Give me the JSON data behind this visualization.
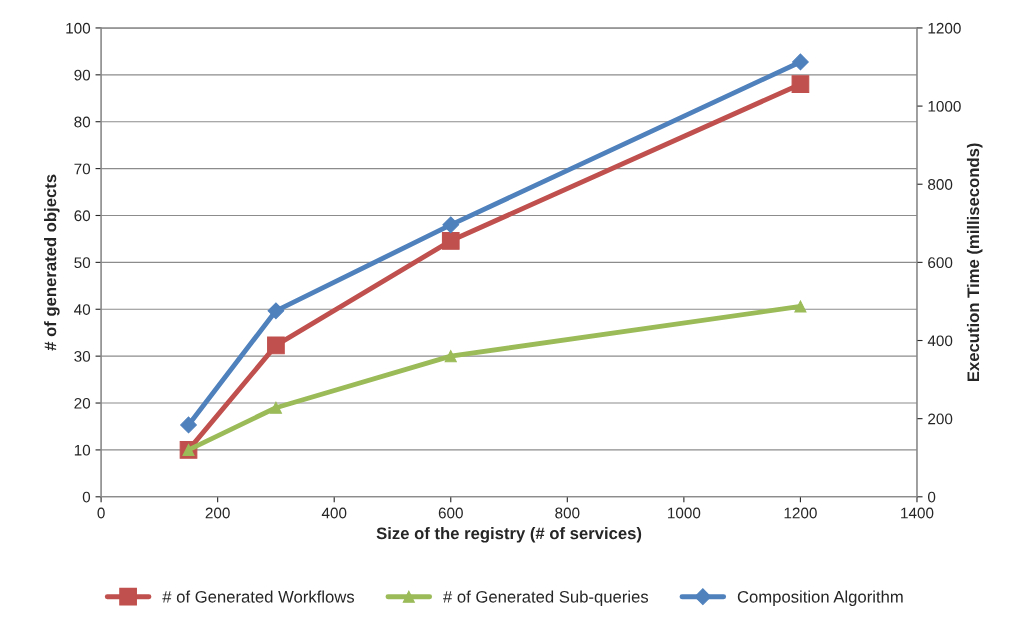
{
  "chart_data": {
    "type": "line",
    "xlabel": "Size of the registry (# of services)",
    "ylabel": "# of generated objects",
    "y2label": "Execution Time (milliseconds)",
    "x": [
      150,
      300,
      600,
      1200
    ],
    "series": [
      {
        "name": "# of Generated Workflows",
        "color": "#c0504d",
        "marker": "square",
        "values": [
          10,
          32.3,
          54.6,
          88
        ]
      },
      {
        "name": "# of Generated Sub-queries",
        "color": "#9bbb59",
        "marker": "triangle",
        "values": [
          10,
          19,
          30,
          40.6
        ]
      },
      {
        "name": "Composition Algorithm",
        "color": "#4f81bd",
        "marker": "diamond",
        "axis": "y2",
        "values": [
          184,
          476,
          696,
          1113
        ]
      }
    ],
    "xlim": [
      0,
      1400
    ],
    "xticks": [
      0,
      200,
      400,
      600,
      800,
      1000,
      1200,
      1400
    ],
    "ylim": [
      0,
      100
    ],
    "yticks": [
      0,
      10,
      20,
      30,
      40,
      50,
      60,
      70,
      80,
      90,
      100
    ],
    "y2lim": [
      0,
      1200
    ],
    "y2ticks": [
      0,
      200,
      400,
      600,
      800,
      1000,
      1200
    ],
    "grid": "y",
    "legend": "bottom",
    "line_style": "solid"
  }
}
